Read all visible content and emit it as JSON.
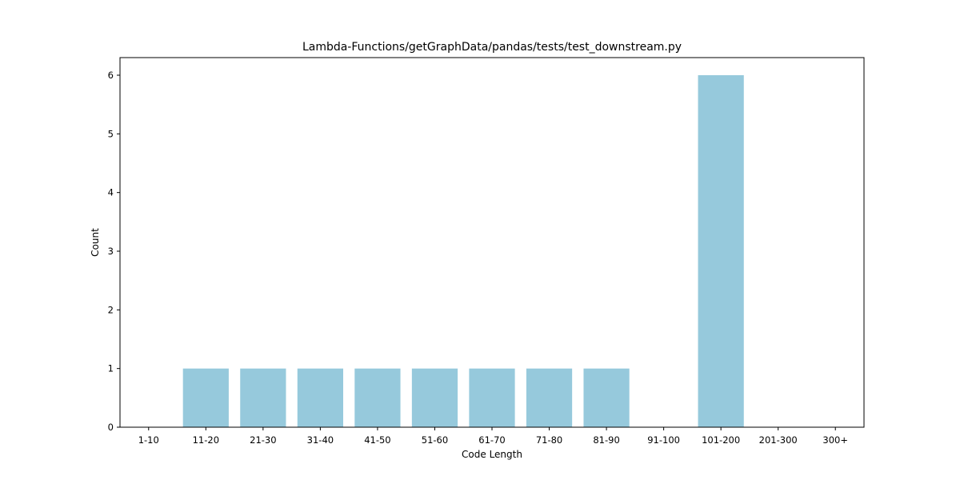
{
  "chart_data": {
    "type": "bar",
    "title": "Lambda-Functions/getGraphData/pandas/tests/test_downstream.py",
    "xlabel": "Code Length",
    "ylabel": "Count",
    "categories": [
      "1-10",
      "11-20",
      "21-30",
      "31-40",
      "41-50",
      "51-60",
      "61-70",
      "71-80",
      "81-90",
      "91-100",
      "101-200",
      "201-300",
      "300+"
    ],
    "values": [
      0,
      1,
      1,
      1,
      1,
      1,
      1,
      1,
      1,
      0,
      6,
      0,
      0
    ],
    "ylim": [
      0,
      6.3
    ],
    "yticks": [
      0,
      1,
      2,
      3,
      4,
      5,
      6
    ],
    "bar_color": "#96c9dc",
    "grid": false,
    "legend": "none"
  }
}
